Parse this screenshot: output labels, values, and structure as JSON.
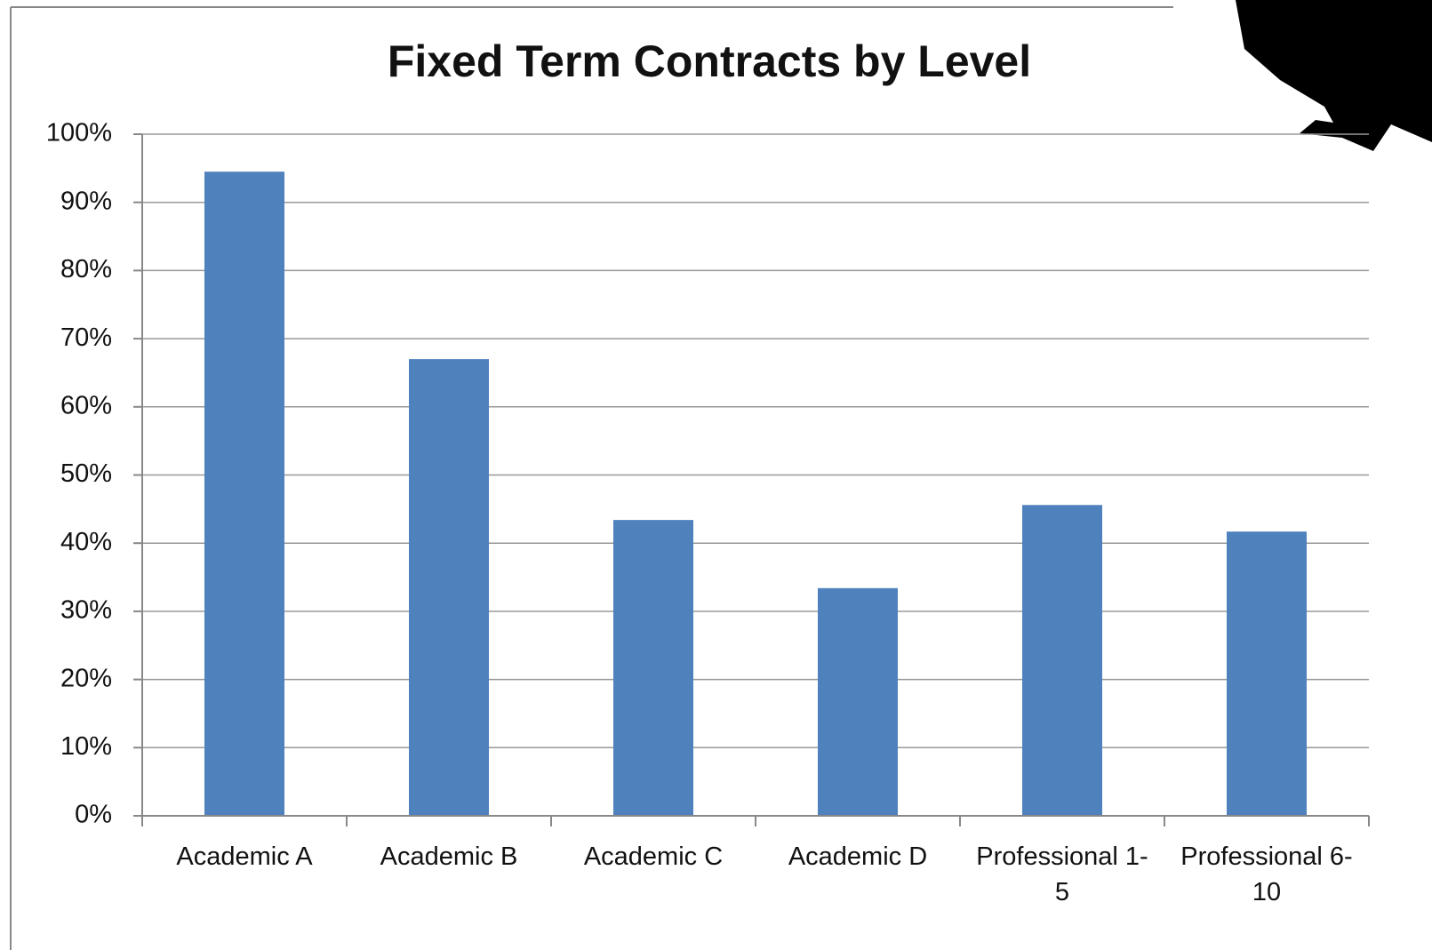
{
  "chart_data": {
    "type": "bar",
    "title": "Fixed Term Contracts by Level",
    "categories": [
      "Academic A",
      "Academic B",
      "Academic C",
      "Academic D",
      "Professional 1-5",
      "Professional 6-10"
    ],
    "values": [
      94.5,
      67.0,
      43.4,
      33.4,
      45.6,
      41.7
    ],
    "color": "#4f81bd",
    "ylim": [
      0,
      100
    ],
    "yticks": [
      {
        "value": 0,
        "label": "0%"
      },
      {
        "value": 10,
        "label": "10%"
      },
      {
        "value": 20,
        "label": "20%"
      },
      {
        "value": 30,
        "label": "30%"
      },
      {
        "value": 40,
        "label": "40%"
      },
      {
        "value": 50,
        "label": "50%"
      },
      {
        "value": 60,
        "label": "60%"
      },
      {
        "value": 70,
        "label": "70%"
      },
      {
        "value": 80,
        "label": "80%"
      },
      {
        "value": 90,
        "label": "90%"
      },
      {
        "value": 100,
        "label": "100%"
      }
    ],
    "grid": true
  }
}
